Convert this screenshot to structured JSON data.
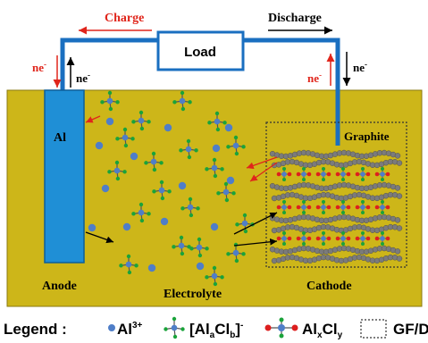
{
  "labels": {
    "charge": "Charge",
    "discharge": "Discharge",
    "load": "Load",
    "ne_left_red": "ne",
    "ne_left_black": "ne",
    "ne_right_red": "ne",
    "ne_right_black": "ne",
    "ne_sup": "-",
    "al": "Al",
    "graphite": "Graphite",
    "anode": "Anode",
    "electrolyte": "Electrolyte",
    "cathode": "Cathode"
  },
  "legend": {
    "title": "Legend :",
    "al_ion": "Al",
    "al_ion_sup": "3+",
    "alcl_a": "[Al",
    "alcl_a_sub": "a",
    "alcl_cl": "Cl",
    "alcl_b_sub": "b",
    "alcl_close": "]",
    "alcl_sup": "-",
    "alxcly_al": "Al",
    "alxcly_x_sub": "x",
    "alxcly_cl": "Cl",
    "alxcly_y_sub": "y",
    "gfd": "GF/D"
  },
  "colors": {
    "electrolyte_bg": "#cdb619",
    "electrode_blue": "#1f8fd6",
    "wire_blue": "#1a6fc0",
    "arrow_red": "#e0251b",
    "ion_blue": "#4f7ec8",
    "cl_green": "#1aa33a",
    "al_red": "#dd1f1f",
    "graphite_grey": "#7b7b7b"
  },
  "icons": {
    "al_ion": "blue-dot-icon",
    "alcl_complex": "tetrahedral-complex-icon",
    "alxcly": "red-al-chain-icon",
    "gfd": "dotted-box-icon"
  }
}
